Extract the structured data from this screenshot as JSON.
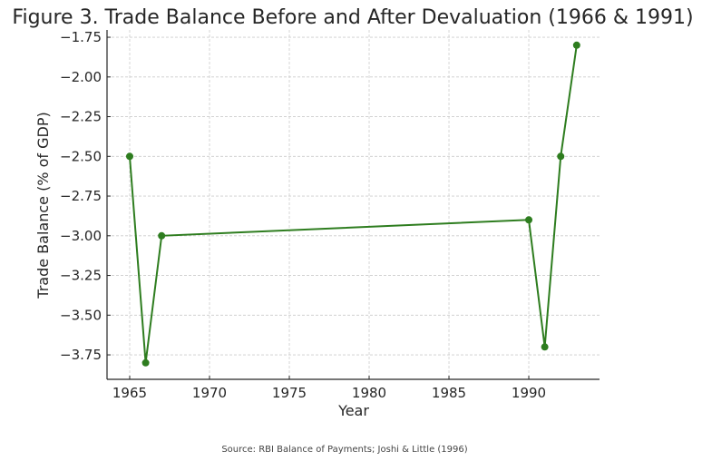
{
  "chart_data": {
    "type": "line",
    "title": "Figure 3. Trade Balance Before and After Devaluation (1966 & 1991)",
    "xlabel": "Year",
    "ylabel": "Trade Balance (% of GDP)",
    "source": "Source: RBI Balance of Payments; Joshi & Little (1996)",
    "x": [
      1965,
      1966,
      1967,
      1990,
      1991,
      1992,
      1993
    ],
    "series": [
      {
        "name": "Trade Balance",
        "values": [
          -2.5,
          -3.8,
          -3.0,
          -2.9,
          -3.7,
          -2.5,
          -1.8
        ],
        "color": "#2e7d1f"
      }
    ],
    "xlim": [
      1963.58,
      1994.43
    ],
    "ylim": [
      -3.904,
      -1.704
    ],
    "xticks": [
      1965,
      1970,
      1975,
      1980,
      1985,
      1990
    ],
    "xtick_labels": [
      "1965",
      "1970",
      "1975",
      "1980",
      "1985",
      "1990"
    ],
    "yticks": [
      -1.75,
      -2.0,
      -2.25,
      -2.5,
      -2.75,
      -3.0,
      -3.25,
      -3.5,
      -3.75
    ],
    "ytick_labels": [
      "−1.75",
      "−2.00",
      "−2.25",
      "−2.50",
      "−2.75",
      "−3.00",
      "−3.25",
      "−3.50",
      "−3.75"
    ],
    "grid": true
  }
}
